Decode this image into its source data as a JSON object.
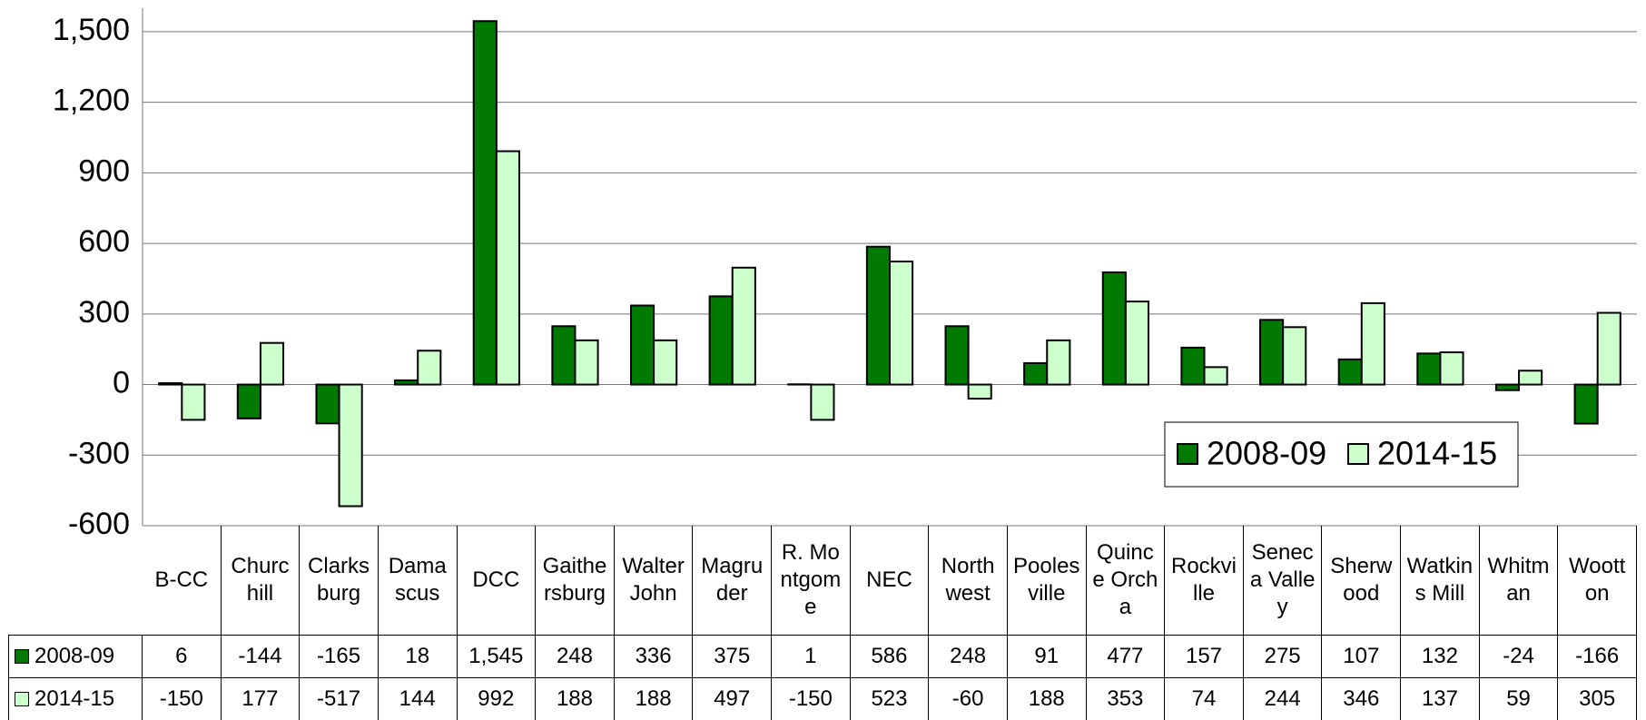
{
  "chart_data": {
    "type": "bar",
    "categories": [
      "B-CC",
      "Churchill",
      "Clarksburg",
      "Damascus",
      "DCC",
      "Gaithersburg",
      "Walter John",
      "Magruder",
      "R. Montgome",
      "NEC",
      "Northwest",
      "Poolesville",
      "Quince Orcha",
      "Rockville",
      "Seneca Valley",
      "Sherwood",
      "Watkins Mill",
      "Whitman",
      "Wootton"
    ],
    "series": [
      {
        "name": "2008-09",
        "color": "#007a00",
        "values": [
          6,
          -144,
          -165,
          18,
          1545,
          248,
          336,
          375,
          1,
          586,
          248,
          91,
          477,
          157,
          275,
          107,
          132,
          -24,
          -166
        ],
        "value_labels": [
          "6",
          "-144",
          "-165",
          "18",
          "1,545",
          "248",
          "336",
          "375",
          "1",
          "586",
          "248",
          "91",
          "477",
          "157",
          "275",
          "107",
          "132",
          "-24",
          "-166"
        ]
      },
      {
        "name": "2014-15",
        "color": "#ccffcc",
        "values": [
          -150,
          177,
          -517,
          144,
          992,
          188,
          188,
          497,
          -150,
          523,
          -60,
          188,
          353,
          74,
          244,
          346,
          137,
          59,
          305
        ]
      }
    ],
    "ylim": [
      -600,
      1600
    ],
    "yticks": [
      -600,
      -300,
      0,
      300,
      600,
      900,
      {
        "value": 1200,
        "label": "1,200"
      },
      {
        "value": 1500,
        "label": "1,500"
      }
    ],
    "grid": true,
    "legend_position": "lower right",
    "data_table": true
  }
}
